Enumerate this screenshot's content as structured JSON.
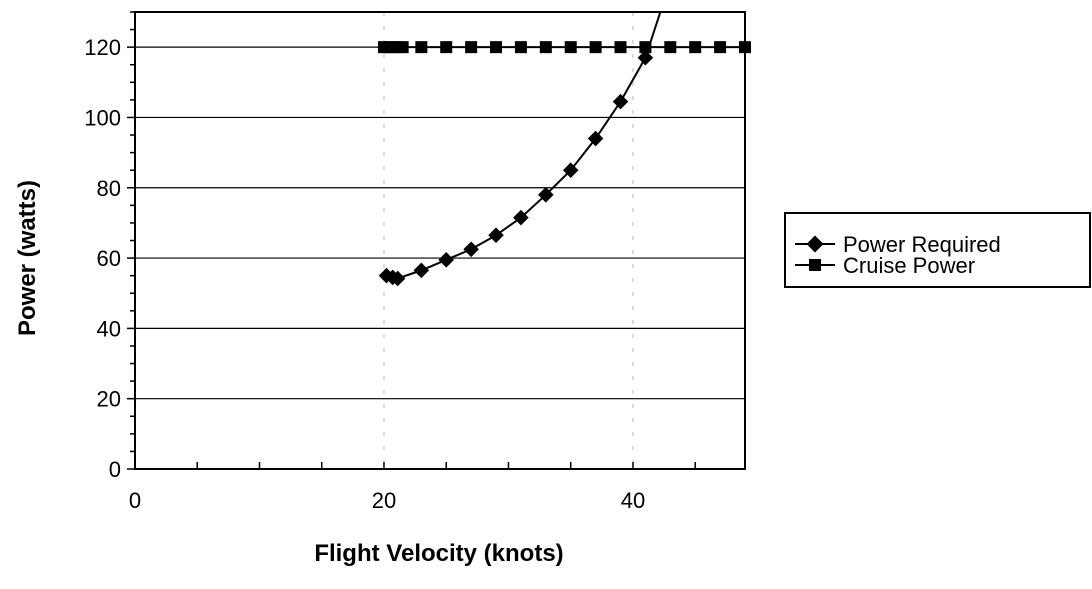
{
  "chart_data": {
    "type": "line",
    "title": "",
    "xlabel": "Flight Velocity (knots)",
    "ylabel": "Power (watts)",
    "xlim": [
      0,
      49
    ],
    "ylim": [
      0,
      130
    ],
    "x_ticks": [
      "0",
      "20",
      "40"
    ],
    "y_ticks": [
      "0",
      "20",
      "40",
      "60",
      "80",
      "100",
      "120"
    ],
    "grid": "horizontal",
    "legend": "right",
    "series": [
      {
        "name": "Power Required",
        "marker": "diamond",
        "x": [
          20.2,
          20.7,
          21.1,
          23.0,
          25.0,
          27.0,
          29.0,
          31.0,
          33.0,
          35.0,
          37.0,
          39.0,
          41.0,
          42.2
        ],
        "y": [
          55,
          54.5,
          54.2,
          56.5,
          59.5,
          62.5,
          66.5,
          71.5,
          78,
          85,
          94,
          104.5,
          117,
          130
        ]
      },
      {
        "name": "Cruise Power",
        "marker": "square",
        "x": [
          20,
          20.5,
          21,
          21.5,
          23,
          25,
          27,
          29,
          31,
          33,
          35,
          37,
          39,
          41,
          43,
          45,
          47,
          49
        ],
        "y": [
          120,
          120,
          120,
          120,
          120,
          120,
          120,
          120,
          120,
          120,
          120,
          120,
          120,
          120,
          120,
          120,
          120,
          120
        ]
      }
    ]
  }
}
